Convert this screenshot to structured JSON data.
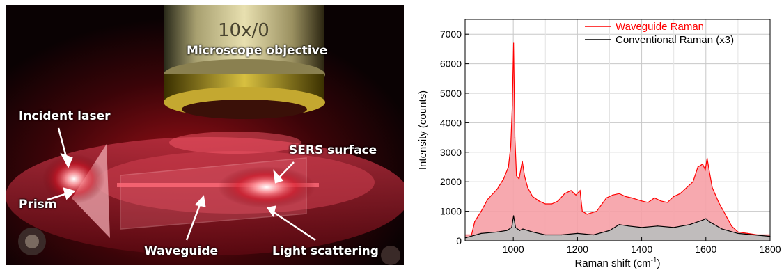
{
  "photo": {
    "labels": {
      "microscope": "Microscope objective",
      "incident": "Incident laser",
      "sers": "SERS surface",
      "prism": "Prism",
      "waveguide": "Waveguide",
      "scattering": "Light scattering"
    },
    "lens_text": "10x/0"
  },
  "chart_data": {
    "type": "line",
    "title": "",
    "xlabel": "Raman shift (cm",
    "xlabel_sup": "-1",
    "xlabel_suffix": ")",
    "ylabel": "Intensity (counts)",
    "xlim": [
      850,
      1800
    ],
    "ylim": [
      0,
      7500
    ],
    "xticks": [
      1000,
      1200,
      1400,
      1600,
      1800
    ],
    "yticks": [
      0,
      1000,
      2000,
      3000,
      4000,
      5000,
      6000,
      7000
    ],
    "grid": true,
    "legend_position": "top-right",
    "series": [
      {
        "name": "Waveguide Raman",
        "color": "#ff0000",
        "fill": "#f6a0a6",
        "x": [
          850,
          870,
          880,
          900,
          920,
          950,
          970,
          985,
          992,
          997,
          1001,
          1005,
          1010,
          1018,
          1028,
          1035,
          1045,
          1060,
          1080,
          1100,
          1120,
          1140,
          1160,
          1180,
          1195,
          1208,
          1215,
          1230,
          1260,
          1290,
          1310,
          1330,
          1350,
          1370,
          1400,
          1420,
          1440,
          1460,
          1480,
          1500,
          1520,
          1540,
          1560,
          1575,
          1590,
          1598,
          1604,
          1610,
          1620,
          1640,
          1660,
          1680,
          1700,
          1730,
          1760,
          1800
        ],
        "values": [
          200,
          200,
          650,
          1000,
          1400,
          1750,
          2100,
          2500,
          3200,
          4600,
          6700,
          3500,
          2200,
          2100,
          2700,
          2200,
          1800,
          1500,
          1350,
          1250,
          1250,
          1350,
          1600,
          1700,
          1550,
          1700,
          1000,
          900,
          1000,
          1450,
          1550,
          1600,
          1500,
          1450,
          1350,
          1300,
          1450,
          1350,
          1300,
          1500,
          1600,
          1800,
          2000,
          2500,
          2600,
          2400,
          2800,
          2400,
          1800,
          1300,
          900,
          500,
          300,
          250,
          200,
          200
        ]
      },
      {
        "name": "Conventional Raman (x3)",
        "color": "#000000",
        "fill": "#bdbdbd",
        "x": [
          850,
          900,
          950,
          980,
          995,
          1001,
          1007,
          1020,
          1030,
          1060,
          1100,
          1150,
          1200,
          1250,
          1300,
          1330,
          1360,
          1400,
          1450,
          1500,
          1550,
          1590,
          1600,
          1610,
          1650,
          1700,
          1750,
          1800
        ],
        "values": [
          100,
          250,
          300,
          350,
          450,
          850,
          450,
          350,
          400,
          300,
          200,
          200,
          250,
          200,
          350,
          550,
          500,
          450,
          500,
          450,
          550,
          700,
          750,
          650,
          400,
          250,
          200,
          150
        ]
      }
    ]
  }
}
